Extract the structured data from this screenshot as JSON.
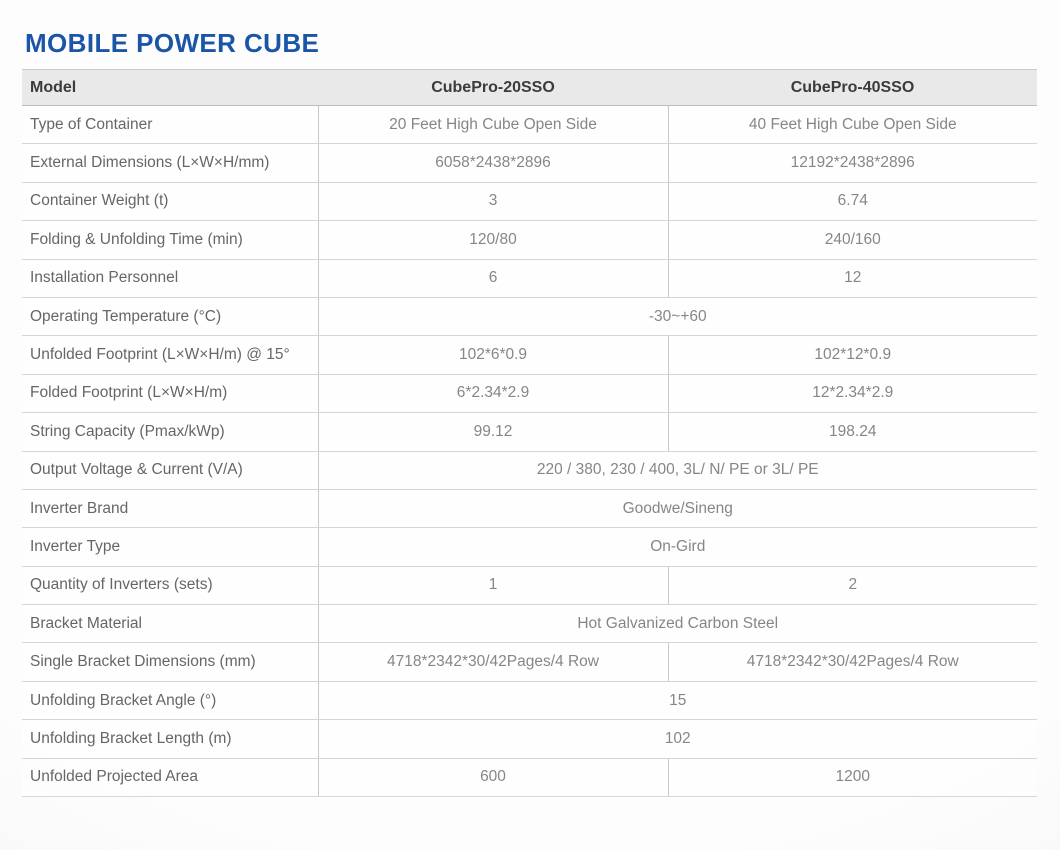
{
  "title": "MOBILE POWER CUBE",
  "colors": {
    "title_accent": "#1b55a8",
    "header_bg": "#e9e9e9",
    "row_border": "#d6d6d6",
    "column_border": "#c9c9c9",
    "header_text": "#3b3b3b",
    "label_text": "#666666",
    "value_text": "#868686"
  },
  "table": {
    "header": {
      "model_label": "Model",
      "product1": "CubePro-20SSO",
      "product2": "CubePro-40SSO"
    },
    "rows": [
      {
        "label": "Type of Container",
        "val1": "20 Feet High Cube Open Side",
        "val2": "40 Feet High Cube Open Side"
      },
      {
        "label": "External Dimensions (L×W×H/mm)",
        "val1": "6058*2438*2896",
        "val2": "12192*2438*2896"
      },
      {
        "label": "Container Weight (t)",
        "val1": "3",
        "val2": "6.74"
      },
      {
        "label": "Folding & Unfolding Time (min)",
        "val1": "120/80",
        "val2": "240/160"
      },
      {
        "label": "Installation Personnel",
        "val1": "6",
        "val2": "12"
      },
      {
        "label": "Operating Temperature (°C)",
        "span": "-30~+60"
      },
      {
        "label": "Unfolded Footprint (L×W×H/m) @ 15°",
        "val1": "102*6*0.9",
        "val2": "102*12*0.9"
      },
      {
        "label": "Folded Footprint (L×W×H/m)",
        "val1": "6*2.34*2.9",
        "val2": "12*2.34*2.9"
      },
      {
        "label": "String Capacity (Pmax/kWp)",
        "val1": "99.12",
        "val2": "198.24"
      },
      {
        "label": "Output Voltage & Current (V/A)",
        "span": "220 / 380, 230 / 400, 3L/ N/ PE or 3L/ PE"
      },
      {
        "label": "Inverter Brand",
        "span": "Goodwe/Sineng"
      },
      {
        "label": "Inverter Type",
        "span": "On-Gird"
      },
      {
        "label": "Quantity of Inverters (sets)",
        "val1": "1",
        "val2": "2"
      },
      {
        "label": "Bracket Material",
        "span": "Hot Galvanized Carbon Steel"
      },
      {
        "label": "Single Bracket Dimensions (mm)",
        "val1": "4718*2342*30/42Pages/4 Row",
        "val2": "4718*2342*30/42Pages/4 Row"
      },
      {
        "label": "Unfolding Bracket Angle (°)",
        "span": "15"
      },
      {
        "label": "Unfolding Bracket Length (m)",
        "span": "102"
      },
      {
        "label": "Unfolded Projected Area",
        "val1": "600",
        "val2": "1200"
      }
    ]
  }
}
